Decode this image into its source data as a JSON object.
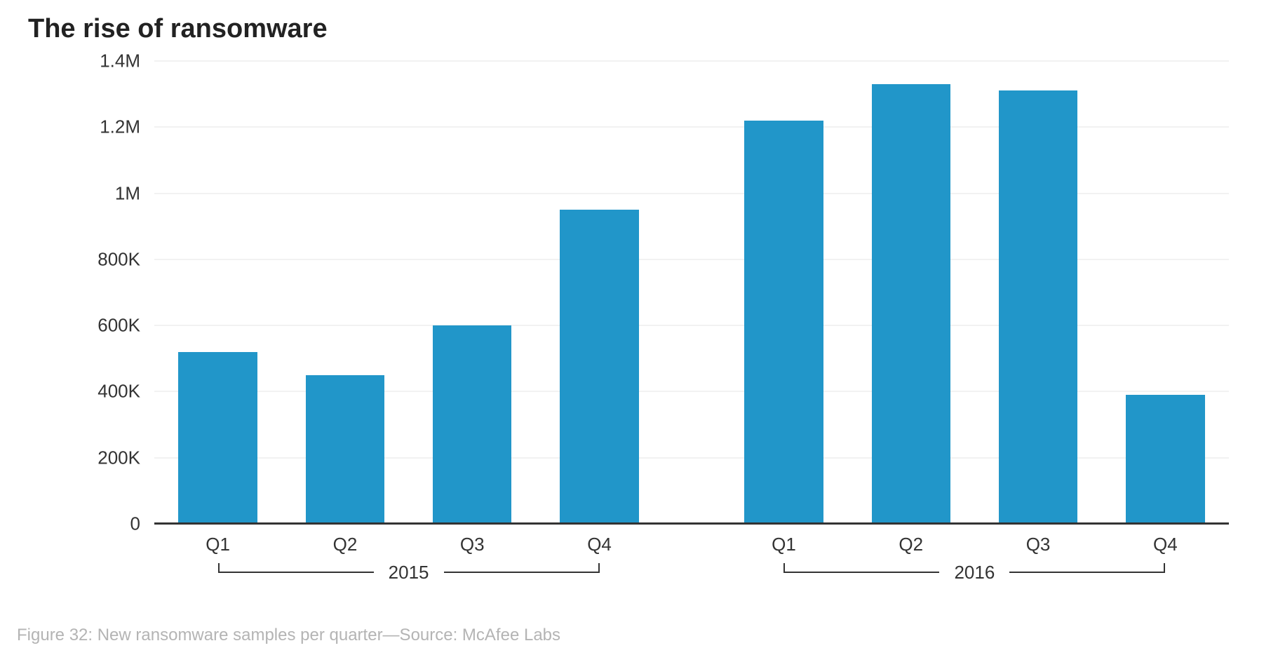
{
  "title": "The rise of ransomware",
  "caption": "Figure 32: New ransomware samples per quarter—Source: McAfee Labs",
  "chart": {
    "type": "bar",
    "y_axis": {
      "min": 0,
      "max": 1400000,
      "ticks": [
        {
          "value": 0,
          "label": "0"
        },
        {
          "value": 200000,
          "label": "200K"
        },
        {
          "value": 400000,
          "label": "400K"
        },
        {
          "value": 600000,
          "label": "600K"
        },
        {
          "value": 800000,
          "label": "800K"
        },
        {
          "value": 1000000,
          "label": "1M"
        },
        {
          "value": 1200000,
          "label": "1.2M"
        },
        {
          "value": 1400000,
          "label": "1.4M"
        }
      ],
      "tick_label_fontsize": 26,
      "tick_label_color": "#333333"
    },
    "grid_color": "#f2f2f2",
    "baseline_color": "#333333",
    "background_color": "#ffffff",
    "bar_color": "#2196c9",
    "bar_width_ratio": 0.62,
    "group_gap_ratio": 0.45,
    "groups": [
      {
        "label": "2015",
        "bars": [
          {
            "label": "Q1",
            "value": 520000
          },
          {
            "label": "Q2",
            "value": 450000
          },
          {
            "label": "Q3",
            "value": 600000
          },
          {
            "label": "Q4",
            "value": 950000
          }
        ]
      },
      {
        "label": "2016",
        "bars": [
          {
            "label": "Q1",
            "value": 1220000
          },
          {
            "label": "Q2",
            "value": 1330000
          },
          {
            "label": "Q3",
            "value": 1310000
          },
          {
            "label": "Q4",
            "value": 390000
          }
        ]
      }
    ],
    "x_label_fontsize": 26,
    "x_label_color": "#333333",
    "group_label_fontsize": 26,
    "group_label_color": "#333333",
    "bracket_color": "#333333"
  }
}
